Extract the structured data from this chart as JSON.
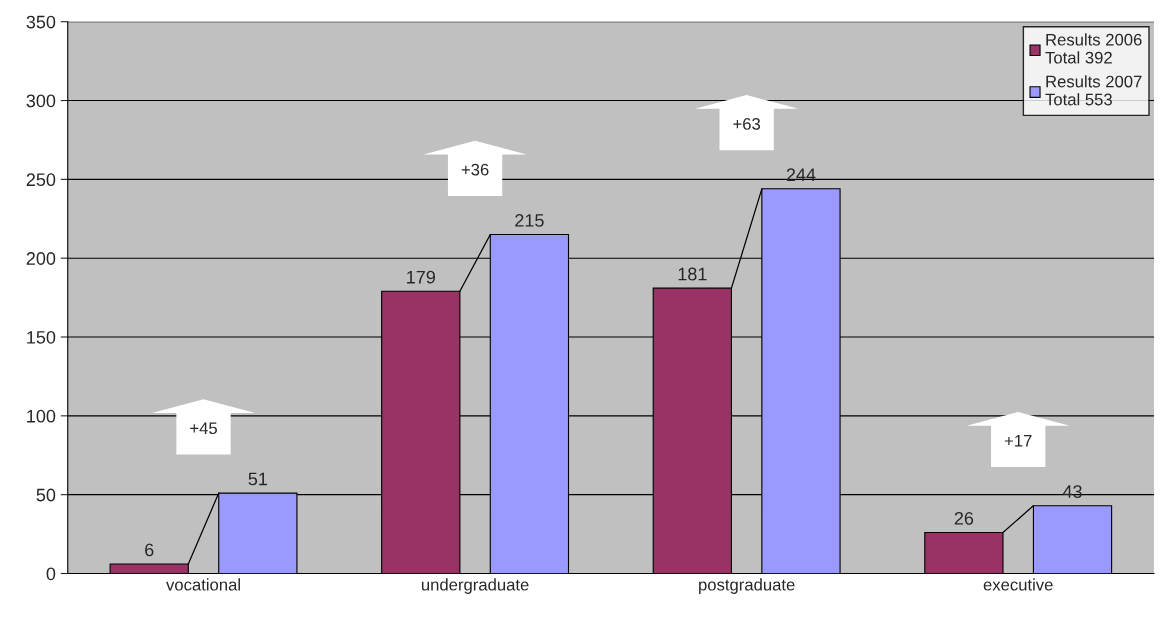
{
  "chart_data": {
    "type": "bar",
    "categories": [
      "vocational",
      "undergraduate",
      "postgraduate",
      "executive"
    ],
    "series": [
      {
        "name": "Results 2006\nTotal 392",
        "color": "#993366",
        "values": [
          6,
          179,
          181,
          26
        ]
      },
      {
        "name": "Results 2007\nTotal 553",
        "color": "#9999ff",
        "values": [
          51,
          215,
          244,
          43
        ]
      }
    ],
    "annotations": [
      "+45",
      "+36",
      "+63",
      "+17"
    ],
    "ylim": [
      0,
      350
    ],
    "yticks": [
      0,
      50,
      100,
      150,
      200,
      250,
      300,
      350
    ],
    "grid": "y",
    "legend": "top right",
    "data_labels": true
  }
}
